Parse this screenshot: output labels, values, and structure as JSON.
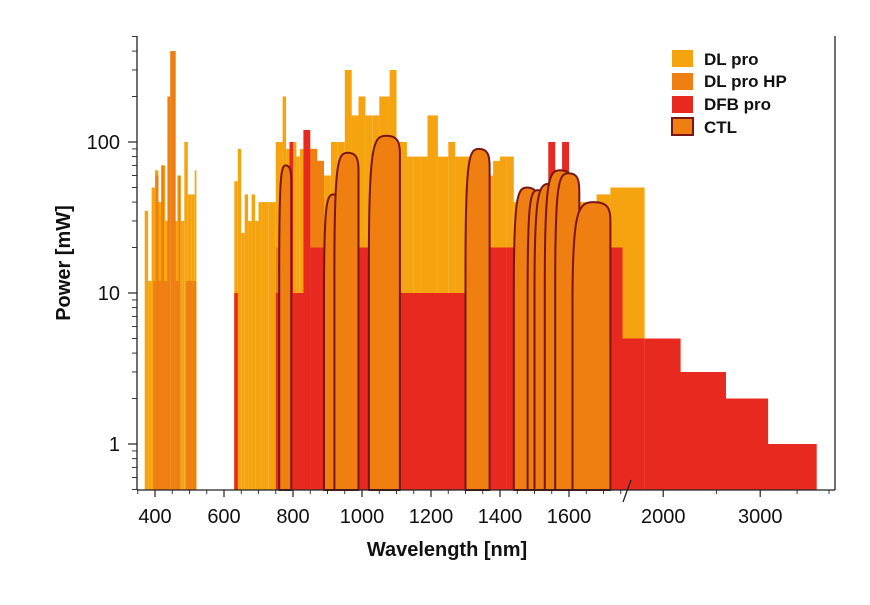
{
  "chart_data": {
    "type": "area",
    "title": "",
    "xlabel": "Wavelength [nm]",
    "ylabel": "Power [mW]",
    "xscale": "linear below 1800 nm, compressed log scale above 1800 nm (axis break)",
    "yscale": "log",
    "ylim": [
      0.5,
      500
    ],
    "x_ticks": [
      {
        "value": 400,
        "label": "400"
      },
      {
        "value": 600,
        "label": "600"
      },
      {
        "value": 800,
        "label": "800"
      },
      {
        "value": 1000,
        "label": "1000"
      },
      {
        "value": 1200,
        "label": "1200"
      },
      {
        "value": 1400,
        "label": "1400"
      },
      {
        "value": 1600,
        "label": "1600"
      },
      {
        "value": 2000,
        "label": "2000"
      },
      {
        "value": 3000,
        "label": "3000"
      }
    ],
    "y_ticks": [
      {
        "value": 1,
        "label": "1"
      },
      {
        "value": 10,
        "label": "10"
      },
      {
        "value": 100,
        "label": "100"
      }
    ],
    "colors": {
      "dl_pro": "#F5A30F",
      "dl_pro_hp": "#EE7F10",
      "dfb_pro": "#E8291F",
      "ctl_fill": "#EE7F10",
      "ctl_edge": "#7A1515",
      "axis": "#222222"
    },
    "legend": {
      "position": "top-right",
      "entries": [
        {
          "key": "dl_pro",
          "label": "DL pro"
        },
        {
          "key": "dl_pro_hp",
          "label": "DL pro HP"
        },
        {
          "key": "dfb_pro",
          "label": "DFB pro"
        },
        {
          "key": "ctl",
          "label": "CTL"
        }
      ]
    },
    "series": [
      {
        "name": "DL pro",
        "key": "dl_pro",
        "bars": [
          [
            370,
            380,
            35
          ],
          [
            380,
            390,
            12
          ],
          [
            390,
            400,
            50
          ],
          [
            400,
            410,
            65
          ],
          [
            410,
            420,
            40
          ],
          [
            420,
            430,
            70
          ],
          [
            430,
            440,
            30
          ],
          [
            445,
            455,
            100
          ],
          [
            455,
            465,
            30
          ],
          [
            465,
            475,
            60
          ],
          [
            475,
            485,
            30
          ],
          [
            485,
            495,
            100
          ],
          [
            495,
            505,
            45
          ],
          [
            505,
            515,
            45
          ],
          [
            515,
            520,
            65
          ],
          [
            630,
            640,
            55
          ],
          [
            640,
            650,
            90
          ],
          [
            650,
            660,
            25
          ],
          [
            660,
            670,
            45
          ],
          [
            670,
            680,
            30
          ],
          [
            680,
            690,
            45
          ],
          [
            690,
            700,
            30
          ],
          [
            700,
            710,
            40
          ],
          [
            710,
            730,
            40
          ],
          [
            730,
            750,
            40
          ],
          [
            750,
            770,
            100
          ],
          [
            770,
            780,
            200
          ],
          [
            780,
            790,
            90
          ],
          [
            790,
            810,
            100
          ],
          [
            810,
            820,
            80
          ],
          [
            820,
            830,
            90
          ],
          [
            830,
            850,
            90
          ],
          [
            850,
            870,
            90
          ],
          [
            870,
            890,
            75
          ],
          [
            890,
            910,
            60
          ],
          [
            910,
            930,
            100
          ],
          [
            930,
            950,
            100
          ],
          [
            950,
            970,
            300
          ],
          [
            970,
            990,
            150
          ],
          [
            990,
            1010,
            200
          ],
          [
            1010,
            1030,
            150
          ],
          [
            1030,
            1050,
            150
          ],
          [
            1050,
            1080,
            200
          ],
          [
            1080,
            1100,
            300
          ],
          [
            1100,
            1130,
            100
          ],
          [
            1130,
            1150,
            80
          ],
          [
            1150,
            1170,
            80
          ],
          [
            1170,
            1190,
            80
          ],
          [
            1190,
            1220,
            150
          ],
          [
            1220,
            1250,
            80
          ],
          [
            1250,
            1270,
            100
          ],
          [
            1270,
            1290,
            80
          ],
          [
            1290,
            1320,
            80
          ],
          [
            1320,
            1350,
            75
          ],
          [
            1350,
            1380,
            60
          ],
          [
            1380,
            1400,
            75
          ],
          [
            1400,
            1420,
            80
          ],
          [
            1420,
            1440,
            80
          ],
          [
            1440,
            1470,
            40
          ],
          [
            1470,
            1500,
            40
          ],
          [
            1500,
            1530,
            40
          ],
          [
            1530,
            1560,
            45
          ],
          [
            1560,
            1590,
            45
          ],
          [
            1590,
            1620,
            40
          ],
          [
            1620,
            1650,
            40
          ],
          [
            1650,
            1680,
            40
          ],
          [
            1680,
            1720,
            45
          ],
          [
            1720,
            1755,
            50
          ],
          [
            1755,
            1800,
            50
          ],
          [
            1800,
            1850,
            50
          ]
        ]
      },
      {
        "name": "DL pro HP",
        "key": "dl_pro_hp",
        "bars": [
          [
            395,
            402,
            12
          ],
          [
            402,
            410,
            60
          ],
          [
            410,
            418,
            12
          ],
          [
            418,
            426,
            70
          ],
          [
            426,
            436,
            12
          ],
          [
            436,
            444,
            200
          ],
          [
            444,
            452,
            400
          ],
          [
            452,
            460,
            400
          ],
          [
            460,
            468,
            12
          ],
          [
            468,
            474,
            60
          ],
          [
            490,
            498,
            12
          ],
          [
            498,
            508,
            12
          ],
          [
            508,
            520,
            12
          ],
          [
            630,
            640,
            10
          ],
          [
            750,
            770,
            20
          ],
          [
            770,
            790,
            20
          ],
          [
            850,
            870,
            90
          ],
          [
            870,
            890,
            75
          ]
        ]
      },
      {
        "name": "DFB pro",
        "key": "dfb_pro",
        "bars": [
          [
            630,
            640,
            10
          ],
          [
            750,
            790,
            10
          ],
          [
            790,
            850,
            10
          ],
          [
            790,
            800,
            100
          ],
          [
            830,
            850,
            120
          ],
          [
            850,
            880,
            20
          ],
          [
            880,
            930,
            20
          ],
          [
            930,
            960,
            20
          ],
          [
            960,
            1000,
            20
          ],
          [
            1000,
            1040,
            20
          ],
          [
            1040,
            1100,
            10
          ],
          [
            1100,
            1200,
            10
          ],
          [
            1200,
            1300,
            10
          ],
          [
            1300,
            1370,
            20
          ],
          [
            1370,
            1420,
            20
          ],
          [
            1420,
            1500,
            20
          ],
          [
            1500,
            1540,
            20
          ],
          [
            1540,
            1560,
            100
          ],
          [
            1560,
            1580,
            20
          ],
          [
            1580,
            1600,
            100
          ],
          [
            1600,
            1650,
            20
          ],
          [
            1650,
            1700,
            20
          ],
          [
            1700,
            1755,
            20
          ],
          [
            1755,
            1850,
            5
          ],
          [
            1850,
            2150,
            5
          ],
          [
            2150,
            2600,
            3
          ],
          [
            2600,
            3100,
            2
          ],
          [
            3100,
            3800,
            1
          ]
        ]
      },
      {
        "name": "CTL",
        "key": "ctl",
        "curves": [
          {
            "start": 760,
            "end": 795,
            "peak": 70
          },
          {
            "start": 890,
            "end": 940,
            "peak": 45
          },
          {
            "start": 920,
            "end": 990,
            "peak": 85
          },
          {
            "start": 1020,
            "end": 1110,
            "peak": 110
          },
          {
            "start": 1300,
            "end": 1370,
            "peak": 90
          },
          {
            "start": 1440,
            "end": 1510,
            "peak": 50
          },
          {
            "start": 1480,
            "end": 1535,
            "peak": 48
          },
          {
            "start": 1500,
            "end": 1580,
            "peak": 53
          },
          {
            "start": 1530,
            "end": 1610,
            "peak": 65
          },
          {
            "start": 1560,
            "end": 1630,
            "peak": 62
          },
          {
            "start": 1610,
            "end": 1720,
            "peak": 40
          }
        ]
      }
    ]
  }
}
